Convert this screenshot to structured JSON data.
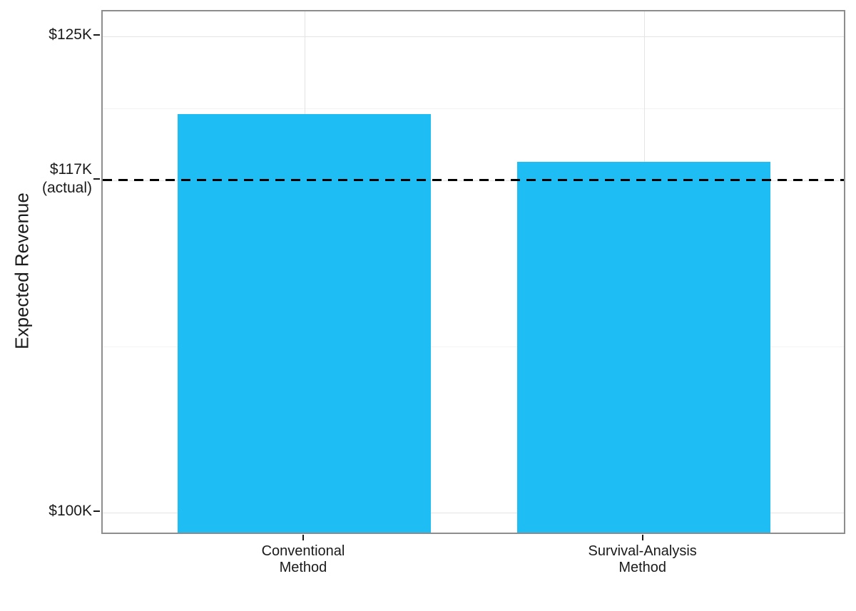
{
  "chart_data": {
    "type": "bar",
    "title": "",
    "ylabel": "Expected Revenue",
    "xlabel": "",
    "categories": [
      {
        "line1": "Conventional",
        "line2": "Method"
      },
      {
        "line1": "Survival-Analysis",
        "line2": "Method"
      }
    ],
    "categories_flat": [
      "Conventional Method",
      "Survival-Analysis Method"
    ],
    "values_k_usd": [
      120.9,
      118.4
    ],
    "unit": "USD thousands",
    "bar_color": "#1ebef5",
    "reference_line": {
      "value_k_usd": 117.45,
      "label": "$117K",
      "sublabel": "(actual)",
      "style": "dashed",
      "color": "#000000"
    },
    "y_axis": {
      "range_k_usd": [
        98.8,
        126.3
      ],
      "ticks": [
        {
          "value": 125,
          "label": "$125K"
        },
        {
          "value": 117.45,
          "label": "$117K",
          "sublabel": "(actual)"
        },
        {
          "value": 100,
          "label": "$100K"
        }
      ],
      "major_gridlines": [
        125,
        117.45,
        100
      ],
      "minor_gridlines": [
        121.2,
        108.7
      ]
    },
    "x_axis": {
      "ticks_at_category_centers": true
    },
    "grid": true,
    "legend": false,
    "panel_border_color": "#8d8d8d",
    "text_color": "#1a1a1a",
    "background_color": "#ffffff"
  }
}
